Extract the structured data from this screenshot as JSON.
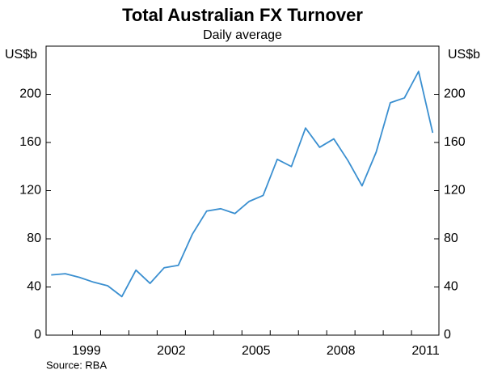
{
  "chart_data": {
    "type": "line",
    "title": "Total Australian FX Turnover",
    "subtitle": "Daily average",
    "y_label": "US$b",
    "source": "Source: RBA",
    "x": [
      1998.25,
      1998.75,
      1999.25,
      1999.75,
      2000.25,
      2000.75,
      2001.25,
      2001.75,
      2002.25,
      2002.75,
      2003.25,
      2003.75,
      2004.25,
      2004.75,
      2005.25,
      2005.75,
      2006.25,
      2006.75,
      2007.25,
      2007.75,
      2008.25,
      2008.75,
      2009.25,
      2009.75,
      2010.25,
      2010.75,
      2011.25,
      2011.75
    ],
    "series": [
      {
        "color": "#3a8fd0",
        "values": [
          50,
          51,
          48,
          44,
          41,
          32,
          54,
          43,
          56,
          58,
          84,
          103,
          105,
          101,
          111,
          116,
          146,
          140,
          172,
          156,
          163,
          145,
          124,
          152,
          193,
          197,
          219,
          168
        ]
      }
    ],
    "xlim": [
      1998.07,
      2011.97
    ],
    "xticks": [
      {
        "value": 1999.5,
        "label": "1999"
      },
      {
        "value": 2002.5,
        "label": "2002"
      },
      {
        "value": 2005.5,
        "label": "2005"
      },
      {
        "value": 2008.5,
        "label": "2008"
      },
      {
        "value": 2011.5,
        "label": "2011"
      }
    ],
    "x_tick_marks": [
      1999,
      2000,
      2001,
      2002,
      2003,
      2004,
      2005,
      2006,
      2007,
      2008,
      2009,
      2010,
      2011
    ],
    "ylim": [
      0,
      240
    ],
    "yticks": [
      0,
      40,
      80,
      120,
      160,
      200
    ],
    "grid": false
  }
}
